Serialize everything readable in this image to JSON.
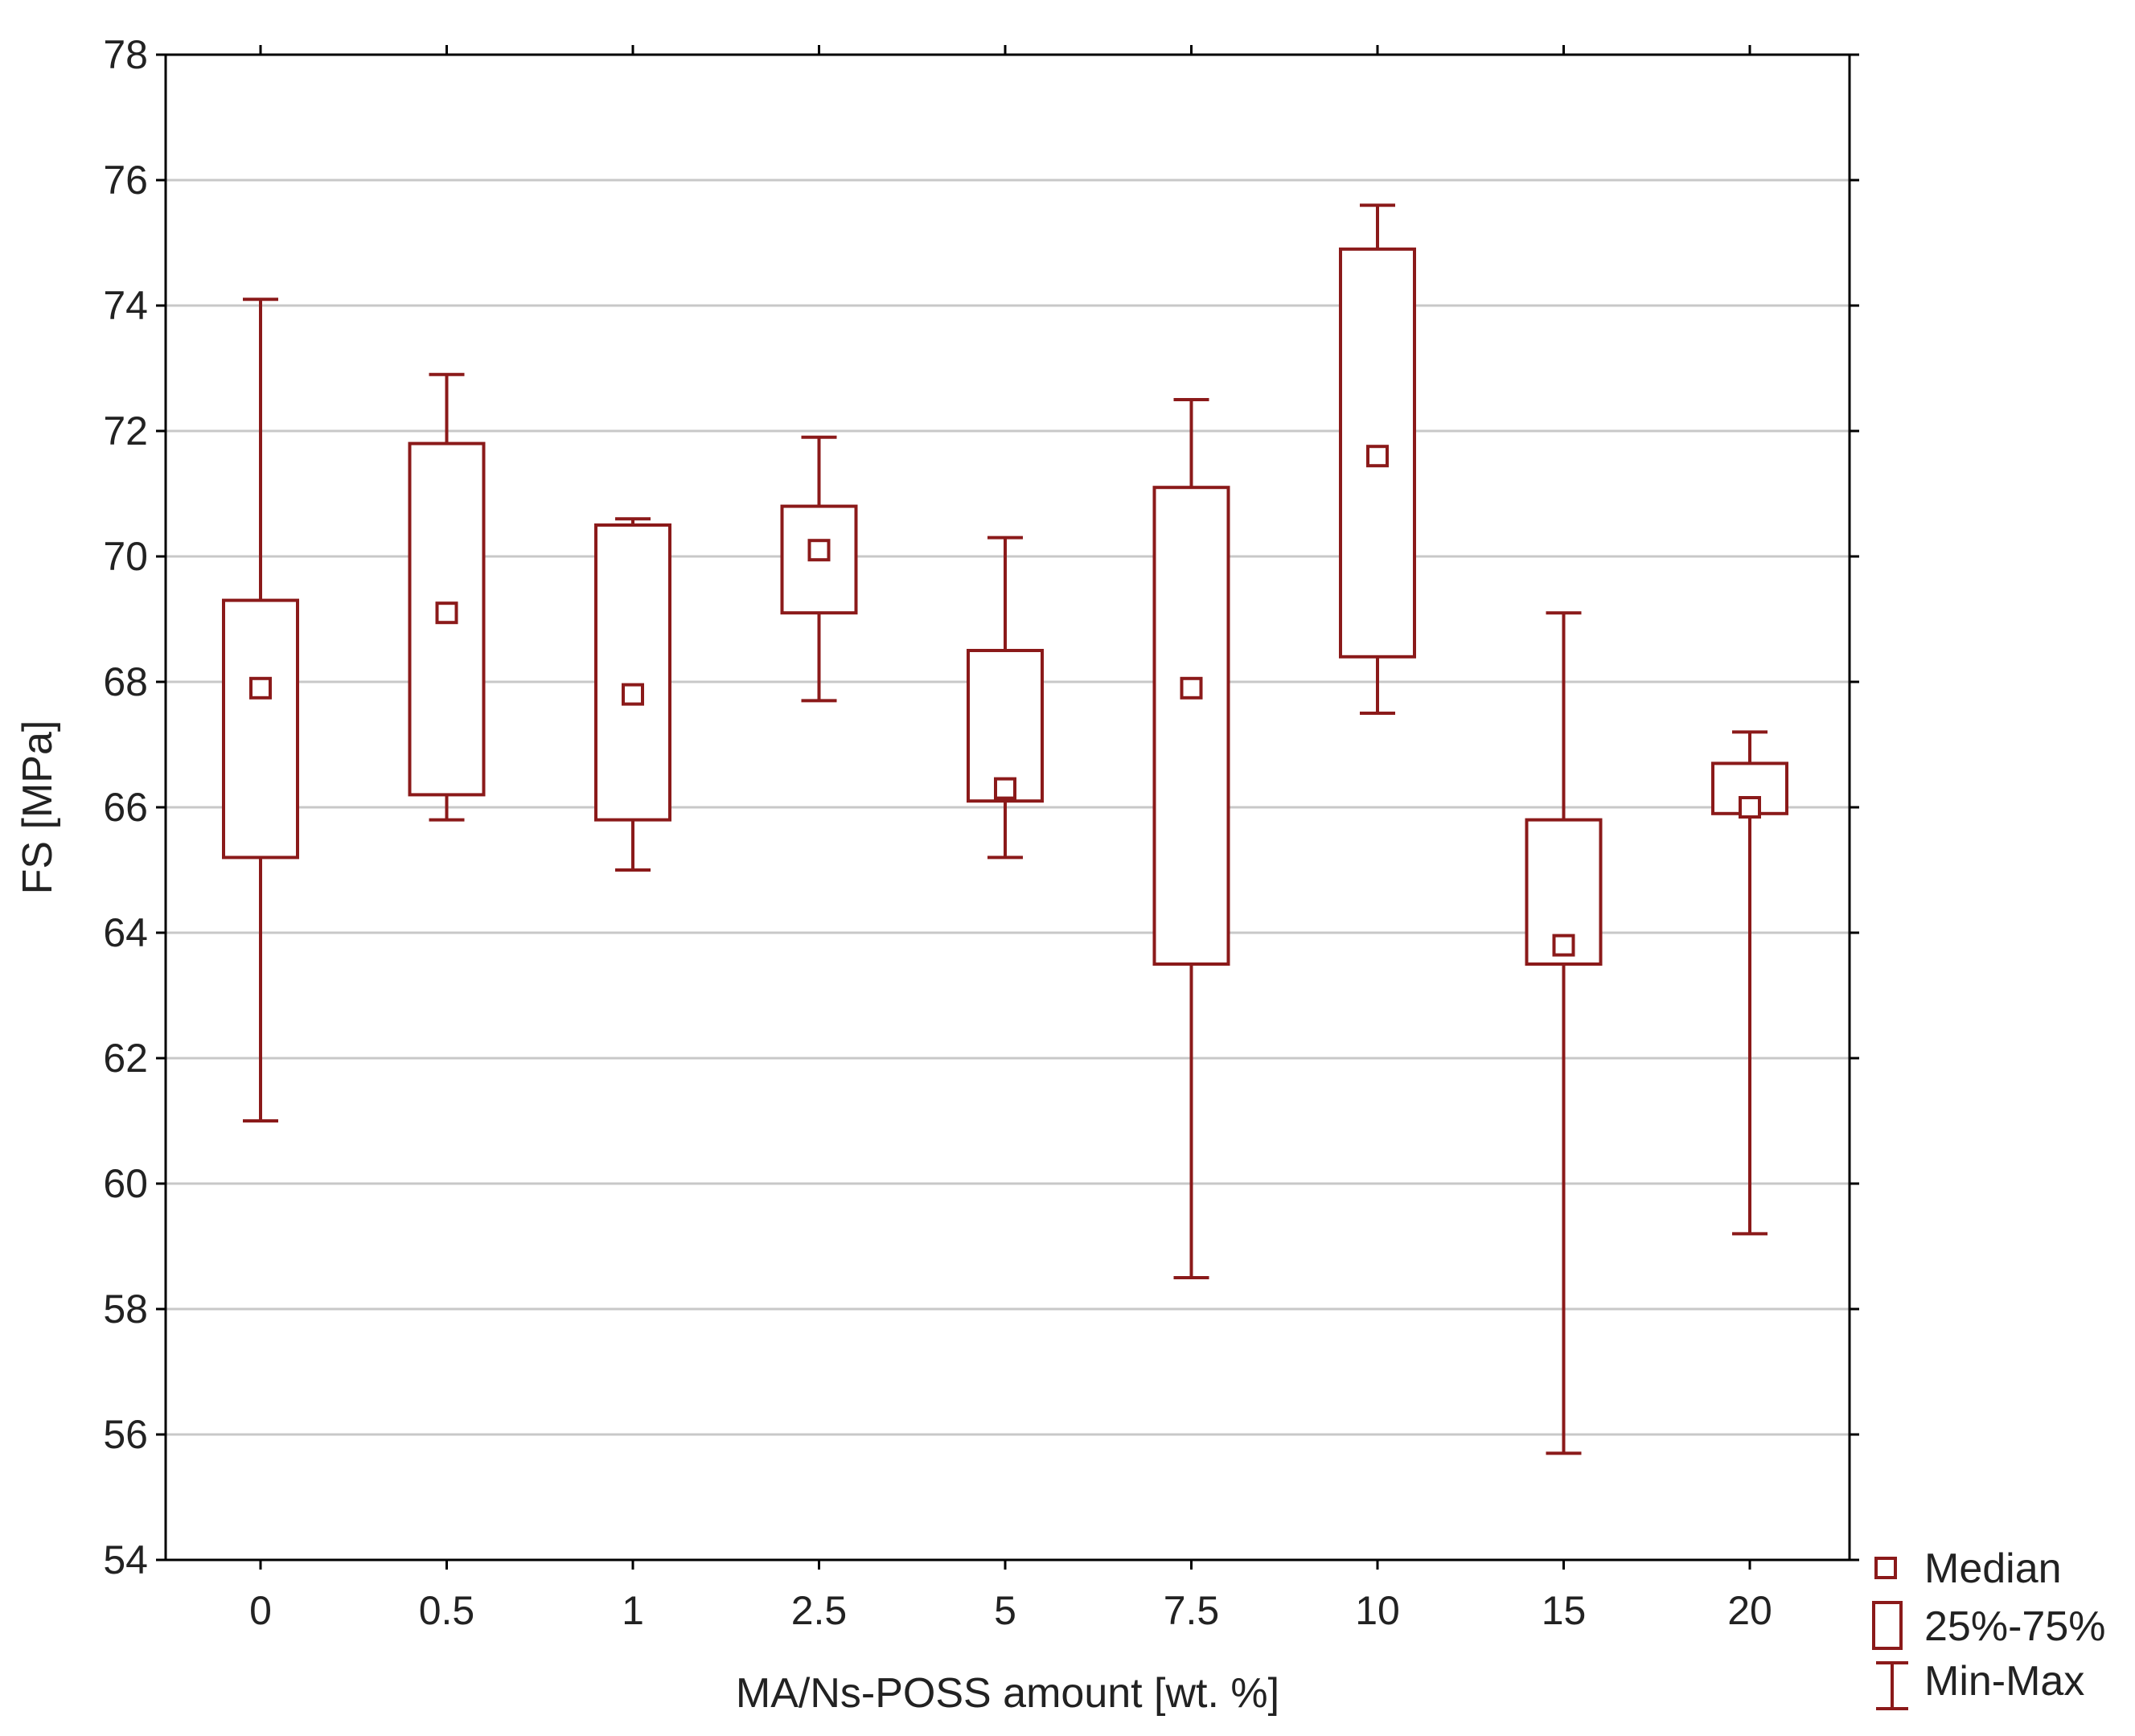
{
  "chart_data": {
    "type": "box",
    "xlabel": "MA/Ns-POSS amount [wt. %]",
    "ylabel": "FS [MPa]",
    "ylim": [
      54,
      78
    ],
    "yticks": [
      "54",
      "56",
      "58",
      "60",
      "62",
      "64",
      "66",
      "68",
      "70",
      "72",
      "74",
      "76",
      "78"
    ],
    "categories": [
      "0",
      "0.5",
      "1",
      "2.5",
      "5",
      "7.5",
      "10",
      "15",
      "20"
    ],
    "series": [
      {
        "category": "0",
        "min": 61.0,
        "q1": 65.2,
        "median": 67.9,
        "q3": 69.3,
        "max": 74.1
      },
      {
        "category": "0.5",
        "min": 65.8,
        "q1": 66.2,
        "median": 69.1,
        "q3": 71.8,
        "max": 72.9
      },
      {
        "category": "1",
        "min": 65.0,
        "q1": 65.8,
        "median": 67.8,
        "q3": 70.5,
        "max": 70.6
      },
      {
        "category": "2.5",
        "min": 67.7,
        "q1": 69.1,
        "median": 70.1,
        "q3": 70.8,
        "max": 71.9
      },
      {
        "category": "5",
        "min": 65.2,
        "q1": 66.1,
        "median": 66.3,
        "q3": 68.5,
        "max": 70.3
      },
      {
        "category": "7.5",
        "min": 58.5,
        "q1": 63.5,
        "median": 67.9,
        "q3": 71.1,
        "max": 72.5
      },
      {
        "category": "10",
        "min": 67.5,
        "q1": 68.4,
        "median": 71.6,
        "q3": 74.9,
        "max": 75.6
      },
      {
        "category": "15",
        "min": 55.7,
        "q1": 63.5,
        "median": 63.8,
        "q3": 65.8,
        "max": 69.1
      },
      {
        "category": "20",
        "min": 59.2,
        "q1": 65.9,
        "median": 66.0,
        "q3": 66.7,
        "max": 67.2
      }
    ],
    "grid": true,
    "legend": {
      "placement": "bottom-right outside",
      "items": [
        "Median",
        "25%-75%",
        "Min-Max"
      ]
    },
    "colors": {
      "series": "#8b1a1a",
      "grid": "#c8c8c8",
      "axis": "#000000"
    }
  }
}
